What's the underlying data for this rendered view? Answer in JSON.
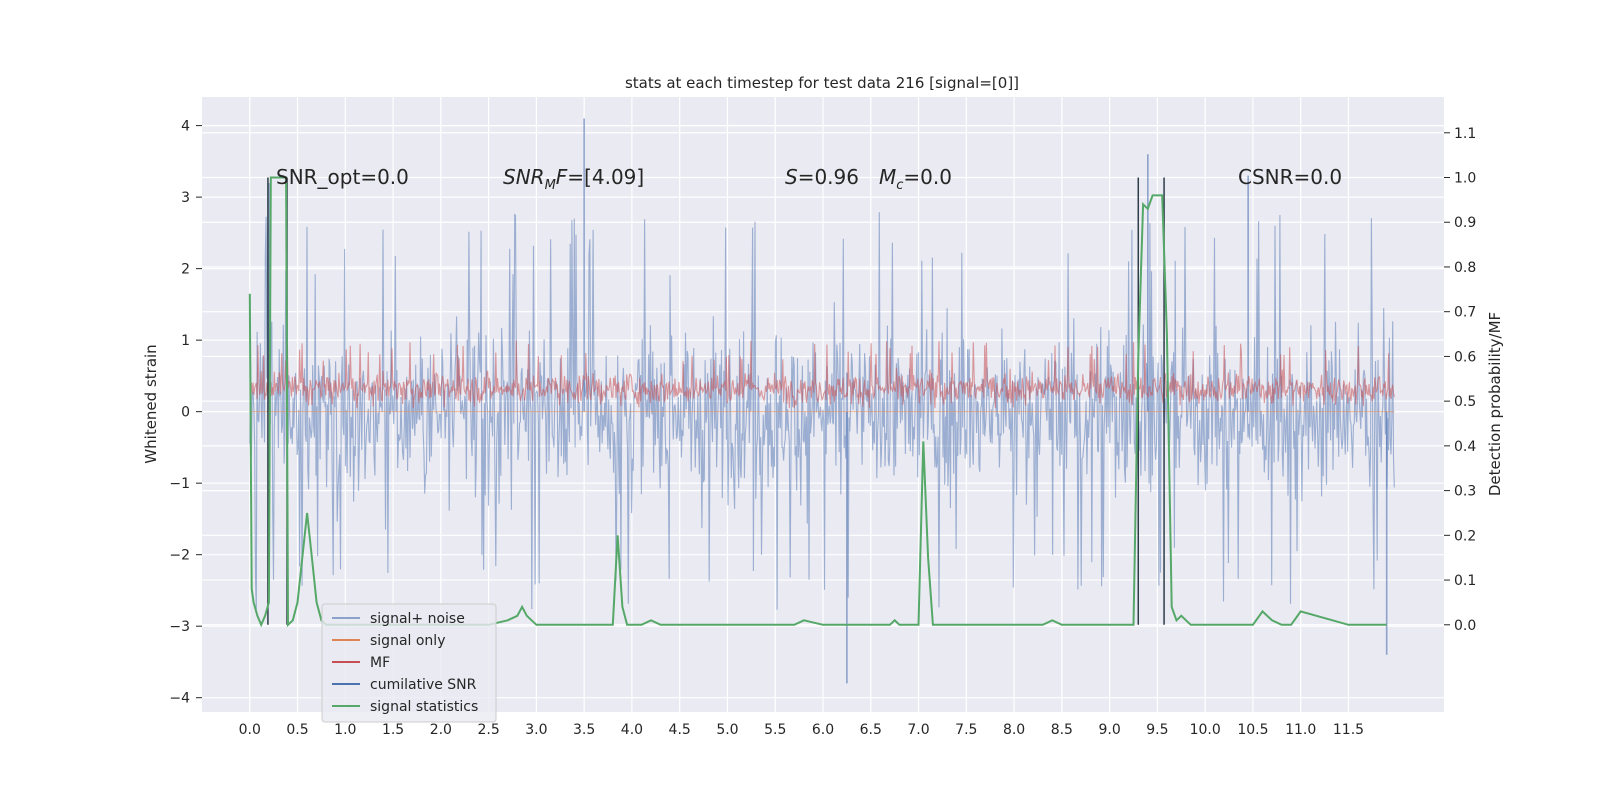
{
  "chart_data": {
    "type": "line",
    "title": "stats at each timestep for test data 216 [signal=[0]]",
    "xlabel": "",
    "ylabel": "Whitened strain",
    "ylabel_right": "Detection probability/MF",
    "xlim": [
      -0.5,
      12.5
    ],
    "ylim": [
      -4.2,
      4.4
    ],
    "ylim_right": [
      -0.195,
      1.18
    ],
    "x_ticks": [
      "0.0",
      "0.5",
      "1.0",
      "1.5",
      "2.0",
      "2.5",
      "3.0",
      "3.5",
      "4.0",
      "4.5",
      "5.0",
      "5.5",
      "6.0",
      "6.5",
      "7.0",
      "7.5",
      "8.0",
      "8.5",
      "9.0",
      "9.5",
      "10.0",
      "10.5",
      "11.0",
      "11.5"
    ],
    "y_ticks": [
      "4",
      "3",
      "2",
      "1",
      "0",
      "−1",
      "−2",
      "−3",
      "−4"
    ],
    "y_ticks_right": [
      "1.1",
      "1.0",
      "0.9",
      "0.8",
      "0.7",
      "0.6",
      "0.5",
      "0.4",
      "0.3",
      "0.2",
      "0.1",
      "0.0"
    ],
    "grid": true,
    "legend_position": "lower-left",
    "annotations": {
      "snr_opt": "SNR_opt=0.0",
      "snr_mf_a": "SNR",
      "snr_mf_sub": "M",
      "snr_mf_b": "F",
      "snr_mf_val": "=[4.09]",
      "s_sym": "S",
      "s_val": "=0.96",
      "mc_sym": "M",
      "mc_sub": "c",
      "mc_val": "=0.0",
      "csnr": "CSNR=0.0"
    },
    "series": [
      {
        "name": "signal+ noise",
        "color": "#4c72b0",
        "kind": "dense-noise",
        "x_range": [
          0.0,
          11.98
        ],
        "band": [
          -1.9,
          2.0
        ],
        "peaks": [
          [
            0.2,
            3.2
          ],
          [
            3.5,
            4.1
          ],
          [
            9.4,
            3.6
          ],
          [
            10.45,
            3.3
          ],
          [
            6.25,
            -3.8
          ],
          [
            11.9,
            -3.4
          ]
        ]
      },
      {
        "name": "signal only",
        "color": "#dd8452",
        "kind": "flat",
        "value": 0.0
      },
      {
        "name": "MF",
        "color": "#c44e52",
        "kind": "dense-noise",
        "x_range": [
          0.0,
          11.98
        ],
        "band": [
          0.05,
          0.7
        ],
        "peaks": []
      },
      {
        "name": "cumilative SNR",
        "color": "#4c72b0",
        "kind": "vlines",
        "x": [
          0.19,
          0.39,
          9.3,
          9.57
        ]
      },
      {
        "name": "signal statistics",
        "color": "#55a868",
        "kind": "line",
        "axis": "right",
        "x": [
          0.0,
          0.02,
          0.04,
          0.08,
          0.12,
          0.16,
          0.2,
          0.22,
          0.25,
          0.3,
          0.35,
          0.38,
          0.4,
          0.45,
          0.5,
          0.55,
          0.6,
          0.65,
          0.7,
          0.75,
          0.8,
          1.0,
          1.5,
          2.0,
          2.5,
          2.7,
          2.8,
          2.85,
          2.9,
          3.0,
          3.5,
          3.8,
          3.85,
          3.9,
          3.95,
          4.0,
          4.1,
          4.2,
          4.3,
          5.0,
          5.5,
          5.7,
          5.8,
          6.0,
          6.5,
          6.7,
          6.75,
          6.8,
          7.0,
          7.05,
          7.1,
          7.15,
          8.0,
          8.3,
          8.4,
          8.5,
          9.0,
          9.25,
          9.3,
          9.35,
          9.4,
          9.45,
          9.5,
          9.55,
          9.6,
          9.65,
          9.7,
          9.75,
          9.8,
          9.85,
          9.9,
          10.0,
          10.5,
          10.6,
          10.7,
          10.8,
          10.9,
          11.0,
          11.5,
          11.9
        ]
      }
    ],
    "signal_statistics_values": [
      0.74,
      0.08,
      0.05,
      0.02,
      0.0,
      0.02,
      0.05,
      1.0,
      1.0,
      1.0,
      1.0,
      1.0,
      0.0,
      0.01,
      0.05,
      0.15,
      0.25,
      0.15,
      0.05,
      0.01,
      0.0,
      0.0,
      0.0,
      0.0,
      0.0,
      0.01,
      0.02,
      0.04,
      0.02,
      0.0,
      0.0,
      0.0,
      0.2,
      0.04,
      0.0,
      0.0,
      0.0,
      0.01,
      0.0,
      0.0,
      0.0,
      0.0,
      0.01,
      0.0,
      0.0,
      0.0,
      0.01,
      0.0,
      0.0,
      0.41,
      0.15,
      0.0,
      0.0,
      0.0,
      0.01,
      0.0,
      0.0,
      0.0,
      0.6,
      0.94,
      0.93,
      0.96,
      0.96,
      0.96,
      0.65,
      0.04,
      0.01,
      0.02,
      0.01,
      0.0,
      0.0,
      0.0,
      0.0,
      0.03,
      0.01,
      0.0,
      0.0,
      0.03,
      0.0,
      0.0
    ],
    "colors": {
      "plot_bg": "#eaeaf2",
      "grid": "#ffffff",
      "cumulative_snr_lines": "#2f3d4a"
    }
  }
}
